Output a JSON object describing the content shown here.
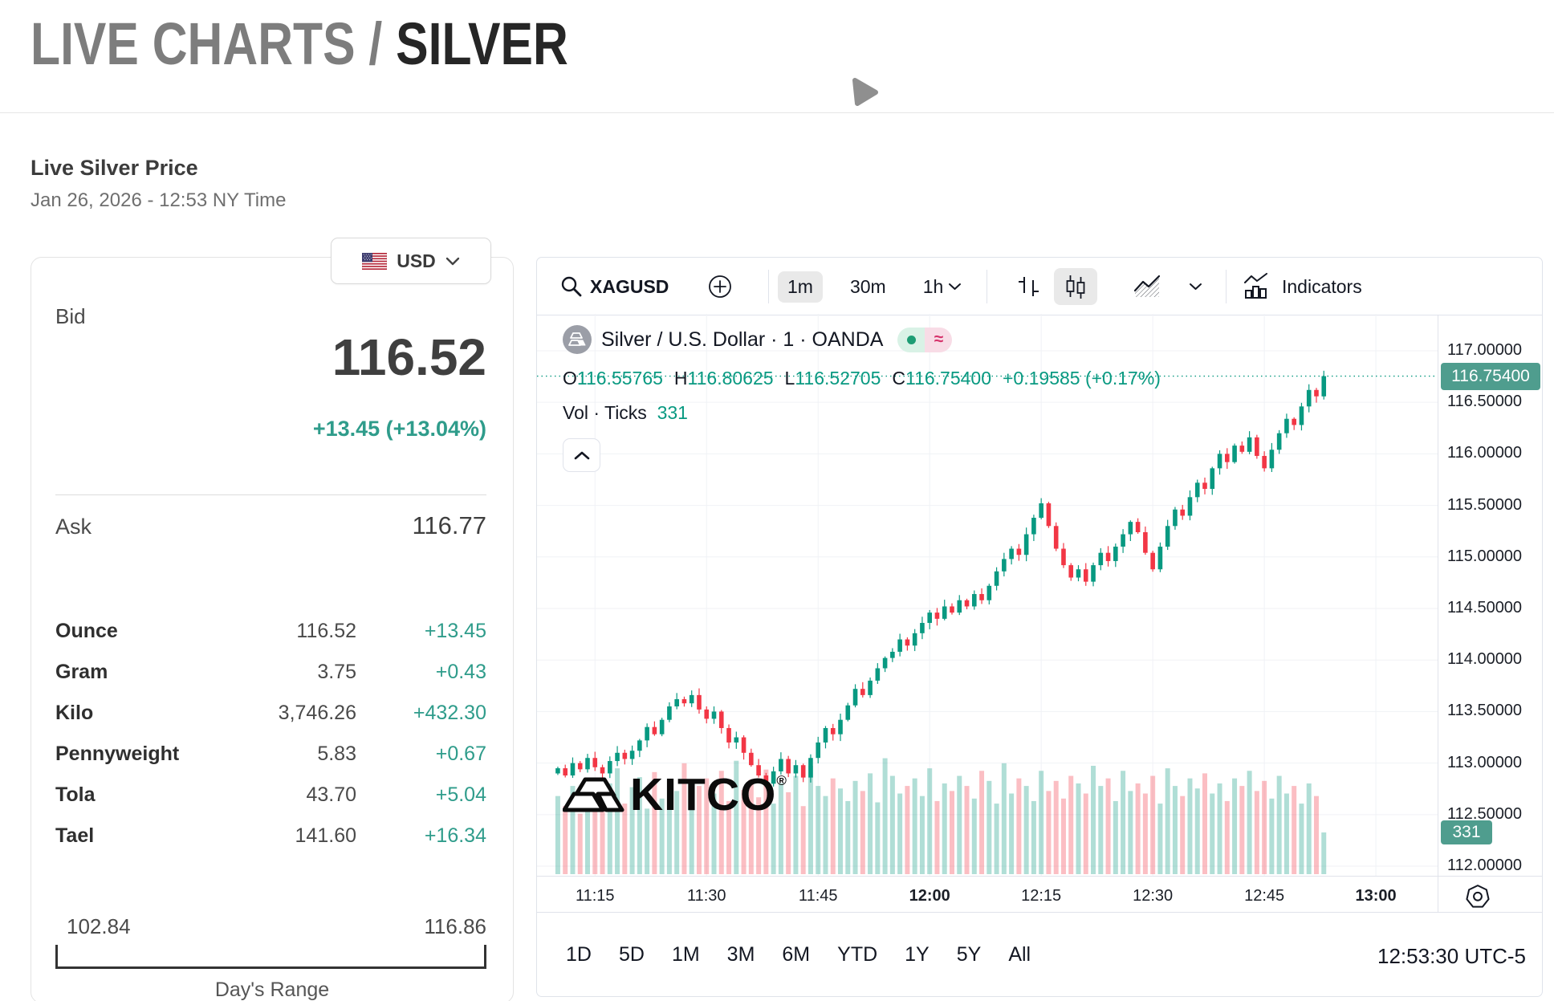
{
  "page": {
    "header_gray": "LIVE CHARTS / ",
    "header_dark": "SILVER",
    "live_label": "Live Silver Price",
    "datetime": "Jan 26, 2026 - 12:53 NY Time"
  },
  "quote": {
    "currency": "USD",
    "bid_label": "Bid",
    "bid": "116.52",
    "bid_change": "+13.45 (+13.04%)",
    "ask_label": "Ask",
    "ask": "116.77",
    "units": [
      {
        "label": "Ounce",
        "value": "116.52",
        "change": "+13.45"
      },
      {
        "label": "Gram",
        "value": "3.75",
        "change": "+0.43"
      },
      {
        "label": "Kilo",
        "value": "3,746.26",
        "change": "+432.30"
      },
      {
        "label": "Pennyweight",
        "value": "5.83",
        "change": "+0.67"
      },
      {
        "label": "Tola",
        "value": "43.70",
        "change": "+5.04"
      },
      {
        "label": "Tael",
        "value": "141.60",
        "change": "+16.34"
      }
    ],
    "range": {
      "low": "102.84",
      "high": "116.86",
      "label": "Day's Range"
    }
  },
  "chart": {
    "toolbar": {
      "symbol": "XAGUSD",
      "intervals": [
        {
          "label": "1m",
          "selected": true
        },
        {
          "label": "30m",
          "selected": false
        },
        {
          "label": "1h",
          "selected": false
        }
      ],
      "indicators_label": "Indicators"
    },
    "legend": {
      "title": "Silver / U.S. Dollar · 1 · OANDA",
      "labels": {
        "o": "O",
        "h": "H",
        "l": "L",
        "c": "C"
      },
      "o": "116.55765",
      "h": "116.80625",
      "l": "116.52705",
      "c": "116.75400",
      "change": "+0.19585 (+0.17%)",
      "vol_label": "Vol · Ticks",
      "vol_value": "331"
    },
    "watermark": "KITCO",
    "watermark_reg": "®",
    "badges": {
      "price": "116.75400",
      "volume": "331"
    },
    "footer": {
      "ranges": [
        "1D",
        "5D",
        "1M",
        "3M",
        "6M",
        "YTD",
        "1Y",
        "5Y",
        "All"
      ],
      "clock": "12:53:30 UTC-5"
    },
    "colors": {
      "up": "#089981",
      "down": "#F23645",
      "accent": "#2f9c8b",
      "badge": "#4f9d8e"
    }
  },
  "chart_data": {
    "type": "candlestick+volume",
    "symbol": "XAGUSD",
    "title": "Silver / U.S. Dollar · 1 · OANDA",
    "interval_minutes": 1,
    "start_time": "11:10",
    "end_time": "12:53",
    "start_minute_of_day": 670,
    "first_open": 112.9,
    "closes": [
      112.95,
      112.88,
      113.0,
      112.94,
      113.05,
      112.96,
      112.9,
      113.02,
      113.1,
      113.04,
      113.12,
      113.22,
      113.35,
      113.28,
      113.42,
      113.55,
      113.62,
      113.58,
      113.66,
      113.52,
      113.43,
      113.5,
      113.34,
      113.2,
      113.25,
      113.1,
      112.98,
      112.88,
      112.8,
      112.92,
      113.04,
      112.9,
      112.98,
      112.86,
      113.05,
      113.2,
      113.34,
      113.28,
      113.42,
      113.56,
      113.72,
      113.66,
      113.8,
      113.92,
      114.02,
      114.08,
      114.2,
      114.14,
      114.26,
      114.36,
      114.46,
      114.4,
      114.52,
      114.46,
      114.58,
      114.52,
      114.64,
      114.58,
      114.72,
      114.86,
      114.98,
      115.08,
      115.02,
      115.22,
      115.38,
      115.52,
      115.3,
      115.08,
      114.92,
      114.8,
      114.88,
      114.76,
      114.92,
      115.04,
      114.96,
      115.1,
      115.22,
      115.34,
      115.24,
      115.04,
      114.88,
      115.1,
      115.3,
      115.46,
      115.4,
      115.58,
      115.72,
      115.66,
      115.86,
      116.0,
      115.92,
      116.08,
      116.02,
      116.16,
      115.98,
      115.86,
      116.04,
      116.2,
      116.34,
      116.28,
      116.46,
      116.62,
      116.558,
      116.754
    ],
    "volumes_ticks": [
      620,
      540,
      700,
      480,
      760,
      650,
      580,
      720,
      840,
      560,
      690,
      770,
      520,
      810,
      600,
      740,
      660,
      880,
      590,
      700,
      760,
      640,
      820,
      580,
      900,
      670,
      750,
      610,
      830,
      560,
      720,
      650,
      780,
      540,
      860,
      700,
      620,
      760,
      680,
      580,
      740,
      660,
      800,
      570,
      920,
      780,
      640,
      700,
      760,
      620,
      840,
      580,
      720,
      660,
      780,
      700,
      600,
      820,
      740,
      560,
      880,
      640,
      760,
      700,
      580,
      820,
      660,
      740,
      600,
      780,
      720,
      640,
      860,
      700,
      760,
      580,
      820,
      660,
      720,
      640,
      780,
      560,
      840,
      700,
      620,
      760,
      680,
      800,
      640,
      720,
      580,
      760,
      700,
      820,
      660,
      740,
      600,
      780,
      640,
      700,
      560,
      720,
      620,
      331
    ],
    "last_candle": {
      "open": 116.55765,
      "high": 116.80625,
      "low": 116.52705,
      "close": 116.754,
      "volume_ticks": 331
    },
    "current_price": 116.754,
    "price_axis": {
      "range": [
        111.907,
        117.358
      ],
      "ticks": [
        {
          "value": 117.0,
          "label": "117.00000"
        },
        {
          "value": 116.5,
          "label": "116.50000"
        },
        {
          "value": 116.0,
          "label": "116.00000"
        },
        {
          "value": 115.5,
          "label": "115.50000"
        },
        {
          "value": 115.0,
          "label": "115.00000"
        },
        {
          "value": 114.5,
          "label": "114.50000"
        },
        {
          "value": 114.0,
          "label": "114.00000"
        },
        {
          "value": 113.5,
          "label": "113.50000"
        },
        {
          "value": 113.0,
          "label": "113.00000"
        },
        {
          "value": 112.5,
          "label": "112.50000"
        },
        {
          "value": 112.0,
          "label": "112.00000"
        }
      ]
    },
    "time_axis": {
      "range_minutes": [
        667.2,
        788.3
      ],
      "ticks": [
        {
          "minute": 675,
          "label": "11:15",
          "bold": false
        },
        {
          "minute": 690,
          "label": "11:30",
          "bold": false
        },
        {
          "minute": 705,
          "label": "11:45",
          "bold": false
        },
        {
          "minute": 720,
          "label": "12:00",
          "bold": true
        },
        {
          "minute": 735,
          "label": "12:15",
          "bold": false
        },
        {
          "minute": 750,
          "label": "12:30",
          "bold": false
        },
        {
          "minute": 765,
          "label": "12:45",
          "bold": false
        },
        {
          "minute": 780,
          "label": "13:00",
          "bold": true
        }
      ]
    },
    "grid": true,
    "legend_position": "top-left",
    "up_color": "#089981",
    "down_color": "#F23645"
  }
}
